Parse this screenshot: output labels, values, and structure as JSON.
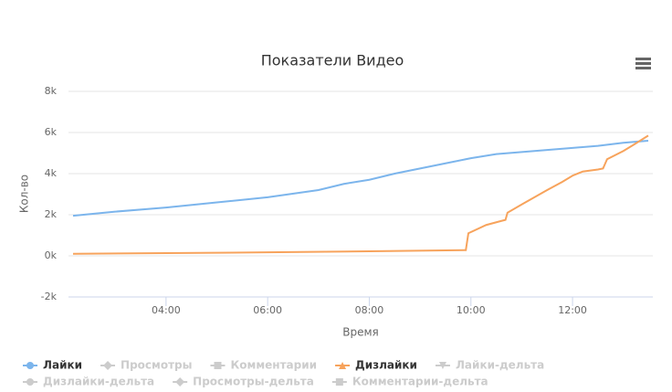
{
  "chart_data": {
    "type": "line",
    "title": "Показатели Видео",
    "x_label": "Время",
    "y_label": "Кол-во",
    "xlim": [
      2.08,
      13.58
    ],
    "xticks": [
      {
        "value": 4,
        "label": "04:00"
      },
      {
        "value": 6,
        "label": "06:00"
      },
      {
        "value": 8,
        "label": "08:00"
      },
      {
        "value": 10,
        "label": "10:00"
      },
      {
        "value": 12,
        "label": "12:00"
      }
    ],
    "ylim": [
      -2000,
      8000
    ],
    "yticks": [
      {
        "value": -2000,
        "label": "-2k"
      },
      {
        "value": 0,
        "label": "0k"
      },
      {
        "value": 2000,
        "label": "2k"
      },
      {
        "value": 4000,
        "label": "4k"
      },
      {
        "value": 6000,
        "label": "6k"
      },
      {
        "value": 8000,
        "label": "8k"
      }
    ],
    "grid": true,
    "series": [
      {
        "name": "Лайки",
        "color": "#7cb5ec",
        "symbol": "circle",
        "visible": true,
        "x": [
          2.17,
          3,
          4,
          5,
          6,
          7,
          7.5,
          8,
          8.5,
          9,
          9.5,
          10,
          10.5,
          11,
          11.5,
          12,
          12.5,
          13,
          13.49
        ],
        "values": [
          1950,
          2150,
          2350,
          2600,
          2850,
          3200,
          3500,
          3700,
          4000,
          4250,
          4500,
          4750,
          4950,
          5050,
          5150,
          5250,
          5350,
          5500,
          5600
        ]
      },
      {
        "name": "Просмотры",
        "symbol": "diamond",
        "visible": false,
        "x": null,
        "values": null
      },
      {
        "name": "Комментарии",
        "symbol": "square",
        "visible": false,
        "x": null,
        "values": null
      },
      {
        "name": "Дизлайки",
        "color": "#f7a35c",
        "symbol": "triangle",
        "visible": true,
        "x": [
          2.17,
          5,
          8,
          9.9,
          9.95,
          10.3,
          10.6,
          10.68,
          10.72,
          11,
          11.5,
          11.8,
          12,
          12.2,
          12.5,
          12.6,
          12.68,
          13,
          13.2,
          13.49
        ],
        "values": [
          100,
          150,
          220,
          280,
          1100,
          1500,
          1700,
          1750,
          2100,
          2500,
          3200,
          3600,
          3900,
          4100,
          4200,
          4250,
          4700,
          5100,
          5400,
          5850
        ]
      },
      {
        "name": "Лайки-дельта",
        "symbol": "triangle-down",
        "visible": false,
        "x": null,
        "values": null
      },
      {
        "name": "Дизлайки-дельта",
        "symbol": "circle",
        "visible": false,
        "x": null,
        "values": null
      },
      {
        "name": "Просмотры-дельта",
        "symbol": "diamond",
        "visible": false,
        "x": null,
        "values": null
      },
      {
        "name": "Комментарии-дельта",
        "symbol": "square",
        "visible": false,
        "x": null,
        "values": null
      }
    ]
  }
}
